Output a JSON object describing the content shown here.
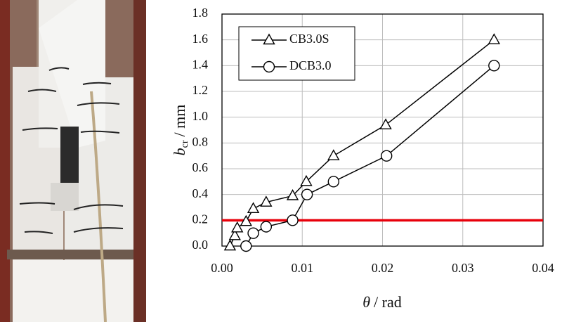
{
  "chart_data": {
    "type": "line",
    "xlabel": {
      "symbol": "θ",
      "unit": "/ rad"
    },
    "ylabel": {
      "symbol": "b",
      "subscript": "cr",
      "unit": "/ mm"
    },
    "xlim": [
      0,
      0.04
    ],
    "xticks": [
      {
        "value": 0,
        "label": "0.00"
      },
      0.01,
      0.02,
      0.03,
      0.04
    ],
    "ylim": [
      0,
      1.8
    ],
    "yticks": [
      {
        "value": 0,
        "label": "0.0"
      },
      0.2,
      0.4,
      0.6,
      0.8,
      {
        "value": 1,
        "label": "1.0"
      },
      1.2,
      1.4,
      1.6,
      1.8
    ],
    "grid": true,
    "legend": "upper left",
    "reference_line": {
      "value": 0.2,
      "color": "#e8000b"
    },
    "series": [
      {
        "name": "CB3.0S",
        "color": "#000000",
        "marker": "triangle",
        "x": [
          0.001,
          0.0016,
          0.0019,
          0.003,
          0.0039,
          0.0055,
          0.0088,
          0.0105,
          0.0139,
          0.0204,
          0.0339
        ],
        "values": [
          0.0,
          0.08,
          0.14,
          0.19,
          0.29,
          0.34,
          0.39,
          0.5,
          0.7,
          0.94,
          1.6
        ]
      },
      {
        "name": "DCB3.0",
        "color": "#000000",
        "marker": "circle",
        "x": [
          0.003,
          0.0039,
          0.0055,
          0.0088,
          0.0106,
          0.0139,
          0.0205,
          0.0339
        ],
        "values": [
          0.0,
          0.1,
          0.15,
          0.2,
          0.4,
          0.5,
          0.7,
          1.4
        ]
      }
    ]
  }
}
